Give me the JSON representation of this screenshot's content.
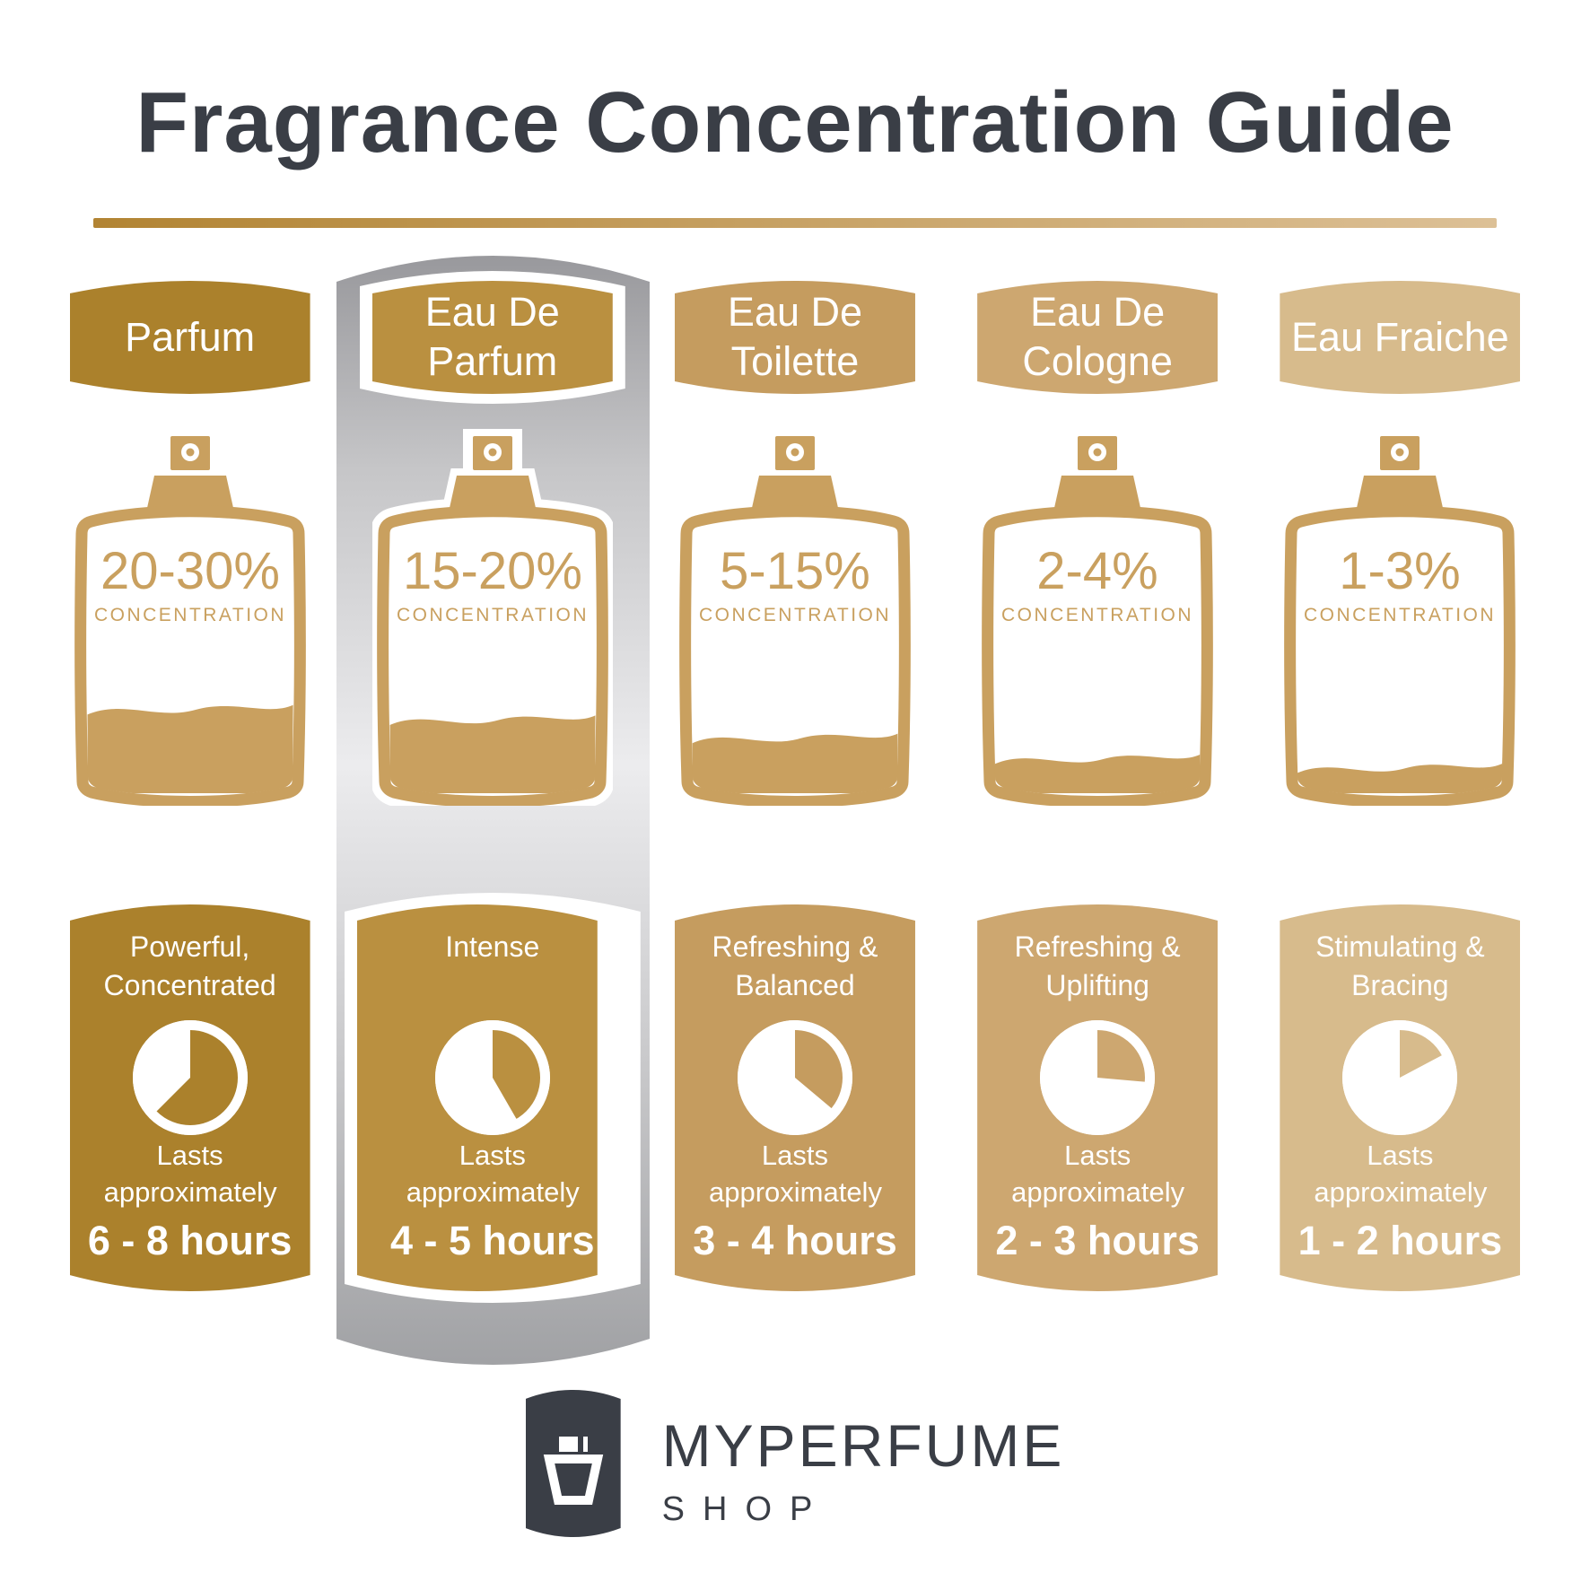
{
  "title": "Fragrance Concentration Guide",
  "underline_colors": {
    "left": "#B28433",
    "right": "#DCC096"
  },
  "concentration_label": "CONCENTRATION",
  "bottle_color": "#C9A05F",
  "text_color": "#3A3E46",
  "highlight": {
    "column_index": 1,
    "band_gradient": [
      "#96969A",
      "#ECECEE",
      "#9FA0A3"
    ]
  },
  "columns": [
    {
      "name": "Parfum",
      "accent": "#AB812C",
      "concentration_range": "20-30%",
      "fill_level": 0.3,
      "description": "Powerful, Concentrated",
      "lasts_label": "Lasts approximately",
      "duration": "6 - 8 hours",
      "clock_degrees": 225
    },
    {
      "name": "Eau De Parfum",
      "accent": "#BA9040",
      "concentration_range": "15-20%",
      "fill_level": 0.26,
      "description": "Intense",
      "lasts_label": "Lasts approximately",
      "duration": "4 - 5 hours",
      "clock_degrees": 150
    },
    {
      "name": "Eau De Toilette",
      "accent": "#C59C5F",
      "concentration_range": "5-15%",
      "fill_level": 0.19,
      "description": "Refreshing & Balanced",
      "lasts_label": "Lasts approximately",
      "duration": "3 - 4 hours",
      "clock_degrees": 130
    },
    {
      "name": "Eau De Cologne",
      "accent": "#CDA770",
      "concentration_range": "2-4%",
      "fill_level": 0.11,
      "description": "Refreshing & Uplifting",
      "lasts_label": "Lasts approximately",
      "duration": "2 - 3 hours",
      "clock_degrees": 95
    },
    {
      "name": "Eau Fraiche",
      "accent": "#D7BB8C",
      "concentration_range": "1-3%",
      "fill_level": 0.075,
      "description": "Stimulating & Bracing",
      "lasts_label": "Lasts approximately",
      "duration": "1 - 2 hours",
      "clock_degrees": 62
    }
  ],
  "brand": {
    "name": "MYPERFUME",
    "sub": "SHOP"
  }
}
